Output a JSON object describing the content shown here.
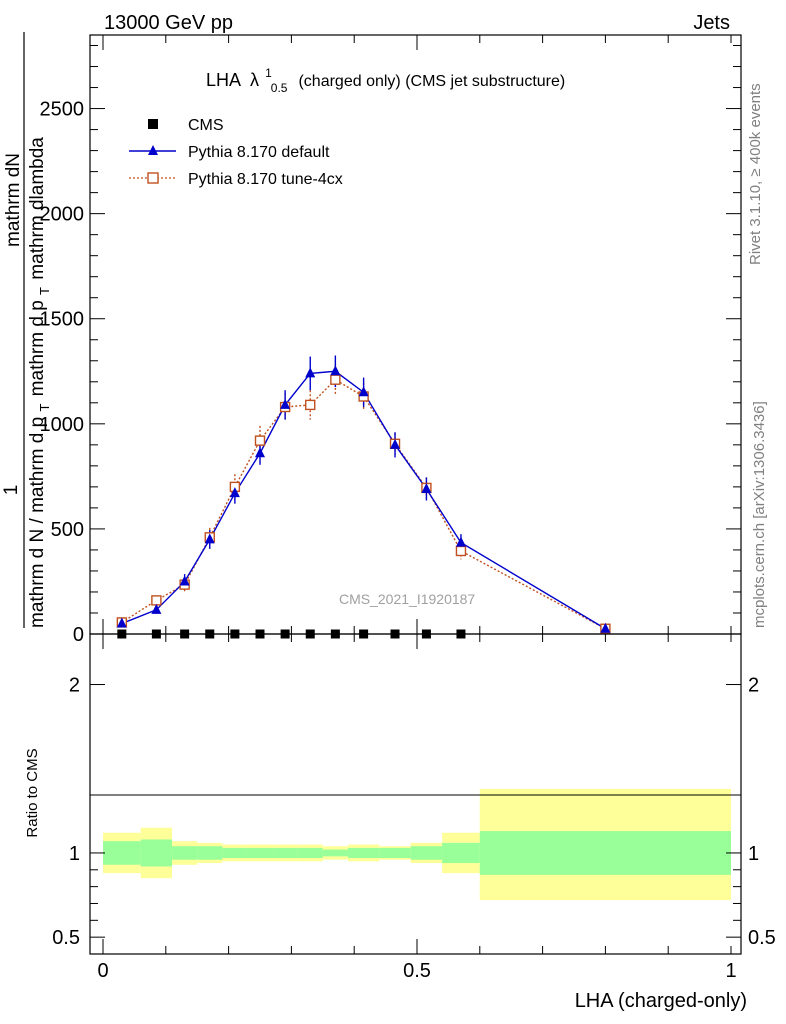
{
  "header": {
    "left": "13000 GeV pp",
    "right": "Jets"
  },
  "side_labels": {
    "rivet": "Rivet 3.1.10, ≥ 400k events",
    "mcplots": "mcplots.cern.ch [arXiv:1306.3436]"
  },
  "colors": {
    "data": "#000000",
    "default": "#0000cc",
    "tune": "#c0501f",
    "band_inner": "#99ff99",
    "band_outer": "#ffff99"
  },
  "chart_data": [
    {
      "type": "line",
      "panel": "main",
      "title": "LHA",
      "title_lambda": "λ",
      "title_sup": "1",
      "title_sub": "0.5",
      "title_suffix": "(charged only) (CMS jet substructure)",
      "watermark": "CMS_2021_I1920187",
      "ylabel_numerator": "1",
      "ylabel_fraction_top": "mathrm dN",
      "ylabel_denominator": "mathrm d N / mathrm d p",
      "ylabel_sub": "T",
      "ylabel_denominator_tail": "mathrm d p",
      "ylabel_sub2": "T",
      "ylabel_tail": "mathrm dlambda",
      "xlim": [
        0,
        1
      ],
      "ylim": [
        0,
        2850
      ],
      "y_ticks": [
        0,
        500,
        1000,
        1500,
        2000,
        2500
      ],
      "y_tick_labels": [
        "0",
        "500",
        "1000",
        "1500",
        "2000",
        "2500"
      ],
      "legend": [
        "CMS",
        "Pythia 8.170 default",
        "Pythia 8.170 tune-4cx"
      ],
      "legend_position": "top-left",
      "series": [
        {
          "name": "CMS",
          "marker": "square",
          "x": [
            0.03,
            0.085,
            0.13,
            0.17,
            0.21,
            0.25,
            0.29,
            0.33,
            0.37,
            0.415,
            0.465,
            0.515,
            0.57
          ],
          "y": [
            0,
            0,
            0,
            0,
            0,
            0,
            0,
            0,
            0,
            0,
            0,
            0,
            0
          ]
        },
        {
          "name": "Pythia 8.170 default",
          "marker": "triangle",
          "x": [
            0.03,
            0.085,
            0.13,
            0.17,
            0.21,
            0.25,
            0.29,
            0.33,
            0.37,
            0.415,
            0.465,
            0.515,
            0.57,
            0.8
          ],
          "y": [
            50,
            115,
            250,
            450,
            670,
            860,
            1090,
            1240,
            1250,
            1150,
            900,
            690,
            435,
            25
          ],
          "err": [
            10,
            15,
            35,
            45,
            50,
            55,
            70,
            80,
            75,
            70,
            60,
            55,
            40,
            5
          ]
        },
        {
          "name": "Pythia 8.170 tune-4cx",
          "marker": "open-square",
          "x": [
            0.03,
            0.085,
            0.13,
            0.17,
            0.21,
            0.25,
            0.29,
            0.33,
            0.37,
            0.415,
            0.465,
            0.515,
            0.57,
            0.8
          ],
          "y": [
            55,
            160,
            235,
            460,
            700,
            920,
            1080,
            1090,
            1210,
            1130,
            905,
            695,
            395,
            25
          ],
          "err": [
            10,
            20,
            35,
            45,
            60,
            70,
            65,
            70,
            75,
            65,
            50,
            50,
            40,
            5
          ]
        }
      ]
    },
    {
      "type": "area",
      "panel": "ratio",
      "ylabel": "Ratio to CMS",
      "xlabel": "LHA (charged-only)",
      "xlim": [
        0,
        1
      ],
      "ylim": [
        0.4,
        2.3
      ],
      "x_ticks": [
        0,
        0.5,
        1
      ],
      "x_tick_labels": [
        "0",
        "0.5",
        "1"
      ],
      "y_tick_labels_major": [
        "0.5",
        "1",
        "2"
      ],
      "y_ticks_major": [
        0.5,
        1,
        2
      ],
      "bins": [
        {
          "x0": 0.0,
          "x1": 0.06,
          "inner": [
            0.93,
            1.07
          ],
          "outer": [
            0.88,
            1.12
          ]
        },
        {
          "x0": 0.06,
          "x1": 0.11,
          "inner": [
            0.92,
            1.08
          ],
          "outer": [
            0.85,
            1.15
          ]
        },
        {
          "x0": 0.11,
          "x1": 0.15,
          "inner": [
            0.96,
            1.04
          ],
          "outer": [
            0.93,
            1.07
          ]
        },
        {
          "x0": 0.15,
          "x1": 0.19,
          "inner": [
            0.96,
            1.04
          ],
          "outer": [
            0.94,
            1.06
          ]
        },
        {
          "x0": 0.19,
          "x1": 0.23,
          "inner": [
            0.97,
            1.03
          ],
          "outer": [
            0.95,
            1.05
          ]
        },
        {
          "x0": 0.23,
          "x1": 0.27,
          "inner": [
            0.97,
            1.03
          ],
          "outer": [
            0.95,
            1.05
          ]
        },
        {
          "x0": 0.27,
          "x1": 0.31,
          "inner": [
            0.97,
            1.03
          ],
          "outer": [
            0.95,
            1.05
          ]
        },
        {
          "x0": 0.31,
          "x1": 0.35,
          "inner": [
            0.97,
            1.03
          ],
          "outer": [
            0.95,
            1.05
          ]
        },
        {
          "x0": 0.35,
          "x1": 0.39,
          "inner": [
            0.98,
            1.02
          ],
          "outer": [
            0.96,
            1.04
          ]
        },
        {
          "x0": 0.39,
          "x1": 0.44,
          "inner": [
            0.97,
            1.03
          ],
          "outer": [
            0.95,
            1.05
          ]
        },
        {
          "x0": 0.44,
          "x1": 0.49,
          "inner": [
            0.97,
            1.03
          ],
          "outer": [
            0.96,
            1.04
          ]
        },
        {
          "x0": 0.49,
          "x1": 0.54,
          "inner": [
            0.96,
            1.04
          ],
          "outer": [
            0.94,
            1.06
          ]
        },
        {
          "x0": 0.54,
          "x1": 0.6,
          "inner": [
            0.94,
            1.06
          ],
          "outer": [
            0.88,
            1.12
          ]
        },
        {
          "x0": 0.6,
          "x1": 1.0,
          "inner": [
            0.87,
            1.13
          ],
          "outer": [
            0.72,
            1.38
          ]
        }
      ]
    }
  ]
}
